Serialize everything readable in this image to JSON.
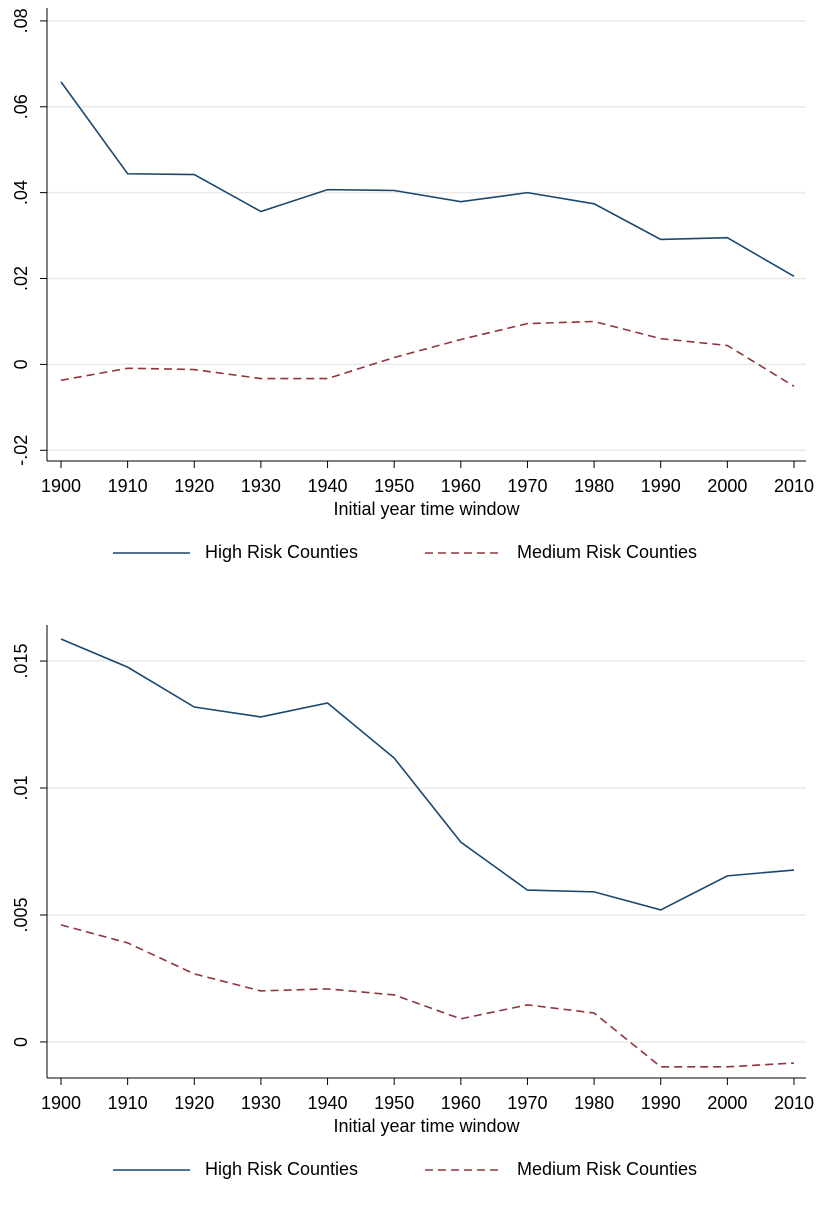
{
  "chart_data": [
    {
      "type": "line",
      "x_label": "Initial year time window",
      "x": [
        1900,
        1910,
        1920,
        1930,
        1940,
        1950,
        1960,
        1970,
        1980,
        1990,
        2000,
        2010
      ],
      "xlim": [
        1900,
        2010
      ],
      "xticks": [
        1900,
        1910,
        1920,
        1930,
        1940,
        1950,
        1960,
        1970,
        1980,
        1990,
        2000,
        2010
      ],
      "ylim": [
        -0.0225,
        0.083
      ],
      "yticks": [
        {
          "value": -0.02,
          "label": "-.02"
        },
        0,
        {
          "value": 0.02,
          "label": ".02"
        },
        {
          "value": 0.04,
          "label": ".04"
        },
        {
          "value": 0.06,
          "label": ".06"
        },
        {
          "value": 0.08,
          "label": ".08"
        }
      ],
      "grid": true,
      "legend_position": "bottom",
      "series": [
        {
          "name": "High Risk Counties",
          "color": "#1a476f",
          "line_style": "solid",
          "values": [
            0.0658,
            0.0444,
            0.0442,
            0.0356,
            0.0407,
            0.0405,
            0.0379,
            0.04,
            0.0374,
            0.0291,
            0.0295,
            0.0205
          ]
        },
        {
          "name": "Medium Risk Counties",
          "color": "#90353b",
          "line_style": "dashed",
          "values": [
            -0.0037,
            -0.0009,
            -0.0012,
            -0.0033,
            -0.0033,
            0.0016,
            0.0058,
            0.0095,
            0.01,
            0.006,
            0.0044,
            -0.0051
          ]
        }
      ]
    },
    {
      "type": "line",
      "x_label": "Initial year time window",
      "x": [
        1900,
        1910,
        1920,
        1930,
        1940,
        1950,
        1960,
        1970,
        1980,
        1990,
        2000,
        2010
      ],
      "xlim": [
        1900,
        2010
      ],
      "xticks": [
        1900,
        1910,
        1920,
        1930,
        1940,
        1950,
        1960,
        1970,
        1980,
        1990,
        2000,
        2010
      ],
      "ylim": [
        -0.00142,
        0.01642
      ],
      "yticks": [
        0,
        {
          "value": 0.005,
          "label": ".005"
        },
        {
          "value": 0.01,
          "label": ".01"
        },
        {
          "value": 0.015,
          "label": ".015"
        }
      ],
      "grid": true,
      "legend_position": "bottom",
      "series": [
        {
          "name": "High Risk Counties",
          "color": "#1a476f",
          "line_style": "solid",
          "values": [
            0.01587,
            0.01476,
            0.01319,
            0.0128,
            0.01335,
            0.01118,
            0.00787,
            0.00598,
            0.00591,
            0.0052,
            0.00654,
            0.00677
          ]
        },
        {
          "name": "Medium Risk Counties",
          "color": "#90353b",
          "line_style": "dashed",
          "values": [
            0.00461,
            0.0039,
            0.00268,
            0.00201,
            0.00209,
            0.00185,
            0.00091,
            0.00146,
            0.00114,
            -0.00098,
            -0.00098,
            -0.00083
          ]
        }
      ]
    }
  ]
}
